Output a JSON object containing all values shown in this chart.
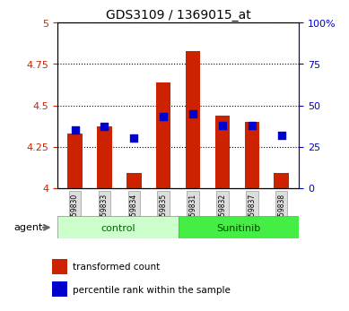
{
  "title": "GDS3109 / 1369015_at",
  "samples": [
    "GSM159830",
    "GSM159833",
    "GSM159834",
    "GSM159835",
    "GSM159831",
    "GSM159832",
    "GSM159837",
    "GSM159838"
  ],
  "groups": [
    "control",
    "control",
    "control",
    "control",
    "Sunitinib",
    "Sunitinib",
    "Sunitinib",
    "Sunitinib"
  ],
  "red_values": [
    4.33,
    4.37,
    4.09,
    4.64,
    4.83,
    4.44,
    4.4,
    4.09
  ],
  "blue_values_pct": [
    35,
    37,
    30,
    43,
    45,
    38,
    38,
    32
  ],
  "ylim_left": [
    4.0,
    5.0
  ],
  "ylim_right": [
    0,
    100
  ],
  "yticks_left": [
    4.0,
    4.25,
    4.5,
    4.75,
    5.0
  ],
  "yticks_right": [
    0,
    25,
    50,
    75,
    100
  ],
  "ytick_labels_left": [
    "4",
    "4.25",
    "4.5",
    "4.75",
    "5"
  ],
  "ytick_labels_right": [
    "0",
    "25",
    "50",
    "75",
    "100%"
  ],
  "bar_color": "#cc2200",
  "dot_color": "#0000cc",
  "control_color": "#ccffcc",
  "sunitinib_color": "#44ee44",
  "bar_bottom": 4.0,
  "agent_label": "agent",
  "control_label": "control",
  "sunitinib_label": "Sunitinib",
  "legend_red": "transformed count",
  "legend_blue": "percentile rank within the sample",
  "grid_color": "#000000",
  "title_color": "#000000",
  "left_axis_color": "#cc2200",
  "right_axis_color": "#0000cc",
  "bar_width": 0.5,
  "dot_size": 30
}
